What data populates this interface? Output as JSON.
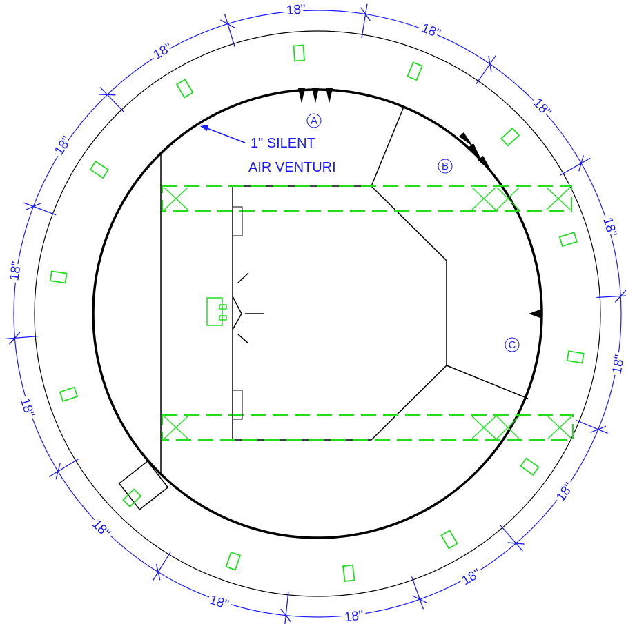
{
  "dimensions": [
    "18\"",
    "18\"",
    "18\"",
    "18\"",
    "18\"",
    "18\"",
    "18\"",
    "18\"",
    "18\"",
    "18\"",
    "18\"",
    "18\"",
    "18\"",
    "18\""
  ],
  "zones": [
    "A",
    "B",
    "C"
  ],
  "callout": [
    "1\" SILENT",
    "AIR VENTURI"
  ]
}
